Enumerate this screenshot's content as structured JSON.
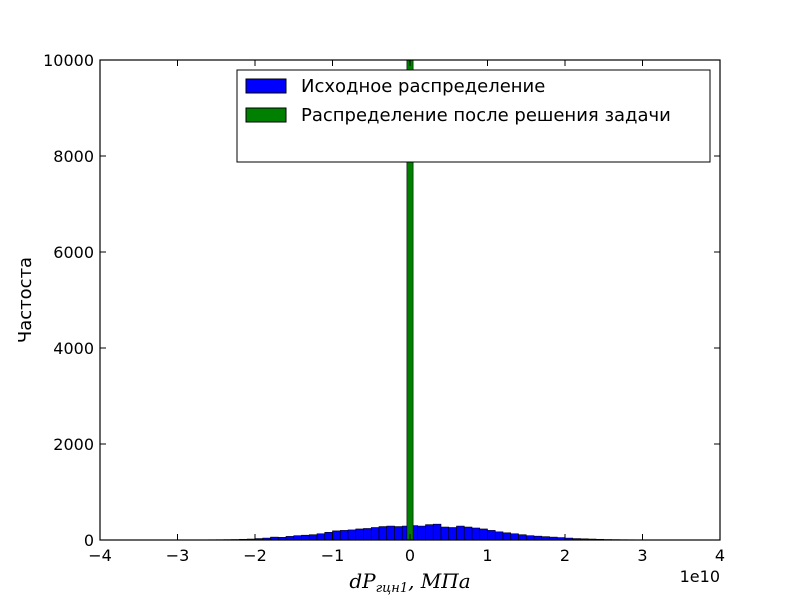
{
  "chart_data": {
    "type": "bar",
    "xlim": [
      -4,
      4
    ],
    "ylim": [
      0,
      10000
    ],
    "x_offset_text": "1e10",
    "xticks": [
      -4,
      -3,
      -2,
      -1,
      0,
      1,
      2,
      3,
      4
    ],
    "xtick_labels": [
      "−4",
      "−3",
      "−2",
      "−1",
      "0",
      "1",
      "2",
      "3",
      "4"
    ],
    "yticks": [
      0,
      2000,
      4000,
      6000,
      8000,
      10000
    ],
    "ytick_labels": [
      "0",
      "2000",
      "4000",
      "6000",
      "8000",
      "10000"
    ],
    "xlabel_main": "dP",
    "xlabel_sub": "гцн1",
    "xlabel_unit": ", МПа",
    "ylabel": "Частоста",
    "legend_position": "top-right",
    "grid": false,
    "series": [
      {
        "name": "Исходное распределение",
        "color": "#0000ff",
        "bin_width": 0.1,
        "bins": [
          [
            -2.6,
            5
          ],
          [
            -2.5,
            6
          ],
          [
            -2.4,
            8
          ],
          [
            -2.3,
            10
          ],
          [
            -2.2,
            15
          ],
          [
            -2.1,
            20
          ],
          [
            -2.0,
            30
          ],
          [
            -1.9,
            40
          ],
          [
            -1.8,
            60
          ],
          [
            -1.7,
            55
          ],
          [
            -1.6,
            75
          ],
          [
            -1.5,
            90
          ],
          [
            -1.4,
            100
          ],
          [
            -1.3,
            110
          ],
          [
            -1.2,
            130
          ],
          [
            -1.1,
            160
          ],
          [
            -1.0,
            190
          ],
          [
            -0.9,
            200
          ],
          [
            -0.8,
            210
          ],
          [
            -0.7,
            230
          ],
          [
            -0.6,
            240
          ],
          [
            -0.5,
            260
          ],
          [
            -0.4,
            280
          ],
          [
            -0.3,
            290
          ],
          [
            -0.2,
            280
          ],
          [
            -0.1,
            290
          ],
          [
            0.0,
            300
          ],
          [
            0.1,
            290
          ],
          [
            0.2,
            320
          ],
          [
            0.3,
            330
          ],
          [
            0.4,
            270
          ],
          [
            0.5,
            260
          ],
          [
            0.6,
            290
          ],
          [
            0.7,
            270
          ],
          [
            0.8,
            250
          ],
          [
            0.9,
            230
          ],
          [
            1.0,
            200
          ],
          [
            1.1,
            170
          ],
          [
            1.2,
            150
          ],
          [
            1.3,
            130
          ],
          [
            1.4,
            110
          ],
          [
            1.5,
            90
          ],
          [
            1.6,
            80
          ],
          [
            1.7,
            70
          ],
          [
            1.8,
            60
          ],
          [
            1.9,
            50
          ],
          [
            2.0,
            40
          ],
          [
            2.1,
            30
          ],
          [
            2.2,
            25
          ],
          [
            2.3,
            20
          ],
          [
            2.4,
            15
          ],
          [
            2.5,
            10
          ],
          [
            2.6,
            8
          ],
          [
            2.7,
            6
          ],
          [
            2.8,
            5
          ],
          [
            2.9,
            4
          ],
          [
            3.0,
            4
          ],
          [
            3.1,
            3
          ],
          [
            3.2,
            3
          ],
          [
            3.3,
            2
          ],
          [
            3.4,
            2
          ],
          [
            3.5,
            2
          ],
          [
            3.6,
            1
          ]
        ]
      },
      {
        "name": "Распределение после решения задачи",
        "color": "#008000",
        "bin_width": 0.08,
        "bins": [
          [
            -0.04,
            10000
          ]
        ]
      }
    ]
  }
}
